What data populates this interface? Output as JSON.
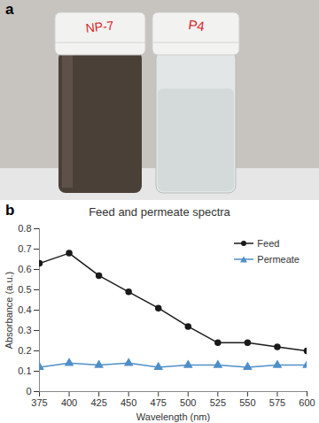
{
  "panel_labels": [
    "a",
    "b"
  ],
  "photo": {
    "vial_labels": [
      "NP-7",
      "P4"
    ]
  },
  "chart_data": {
    "type": "line",
    "title": "Feed and permeate spectra",
    "x_label": "Wavelength (nm)",
    "y_label": "Absorbance (a.u.)",
    "x": [
      375,
      400,
      425,
      450,
      475,
      500,
      525,
      550,
      575,
      600
    ],
    "series": [
      {
        "name": "Feed",
        "color": "#1a1a1a",
        "marker": "circle",
        "values": [
          0.63,
          0.68,
          0.57,
          0.49,
          0.41,
          0.32,
          0.24,
          0.24,
          0.22,
          0.2
        ]
      },
      {
        "name": "Permeate",
        "color": "#4f8fc9",
        "marker": "triangle",
        "values": [
          0.12,
          0.14,
          0.13,
          0.14,
          0.12,
          0.13,
          0.13,
          0.12,
          0.13,
          0.13
        ]
      }
    ],
    "xlim": [
      375,
      600
    ],
    "xticks": [
      375,
      400,
      425,
      450,
      475,
      500,
      525,
      550,
      575,
      600
    ],
    "ylim": [
      0,
      0.8
    ],
    "yticks": [
      0,
      0.1,
      0.2,
      0.3,
      0.4,
      0.5,
      0.6,
      0.7,
      0.8
    ],
    "grid": false,
    "legend": "top-right"
  }
}
